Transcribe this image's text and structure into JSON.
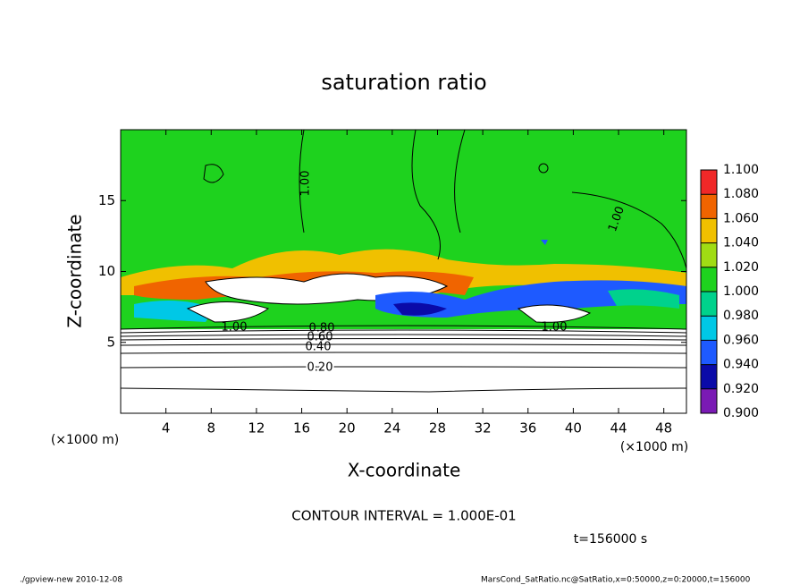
{
  "chart_data": {
    "type": "contour",
    "title": "saturation ratio",
    "xlabel": "X-coordinate",
    "ylabel": "Z-coordinate",
    "x_unit": "(×1000 m)",
    "y_unit": "(×1000 m)",
    "xlim": [
      0,
      50
    ],
    "ylim": [
      0,
      20
    ],
    "xticks": [
      4,
      8,
      12,
      16,
      20,
      24,
      28,
      32,
      36,
      40,
      44,
      48
    ],
    "yticks": [
      5,
      10,
      15
    ],
    "contour_labels": [
      "1.00",
      "1.00",
      "1.00",
      "1.00",
      "0.80",
      "0.60",
      "0.40",
      "0.20"
    ],
    "colorbar": {
      "levels": [
        {
          "value": 0.9,
          "label": "0.900"
        },
        {
          "value": 0.92,
          "label": "0.920"
        },
        {
          "value": 0.94,
          "label": "0.940"
        },
        {
          "value": 0.96,
          "label": "0.960"
        },
        {
          "value": 0.98,
          "label": "0.980"
        },
        {
          "value": 1.0,
          "label": "1.000"
        },
        {
          "value": 1.02,
          "label": "1.020"
        },
        {
          "value": 1.04,
          "label": "1.040"
        },
        {
          "value": 1.06,
          "label": "1.060"
        },
        {
          "value": 1.08,
          "label": "1.080"
        },
        {
          "value": 1.1,
          "label": "1.100"
        }
      ],
      "colors": [
        "#7a1ab4",
        "#0a0aa8",
        "#1e5aff",
        "#00c8e6",
        "#00d28c",
        "#1ed21e",
        "#a0dc14",
        "#f0c000",
        "#f06400",
        "#f02828",
        "#fa9a9a"
      ]
    },
    "contour_interval": "CONTOUR INTERVAL = 1.000E-01",
    "time_label": "t=156000 s",
    "footer_left": "./gpview-new   2010-12-08",
    "footer_right": "MarsCond_SatRatio.nc@SatRatio,x=0:50000,z=0:20000,t=156000"
  }
}
